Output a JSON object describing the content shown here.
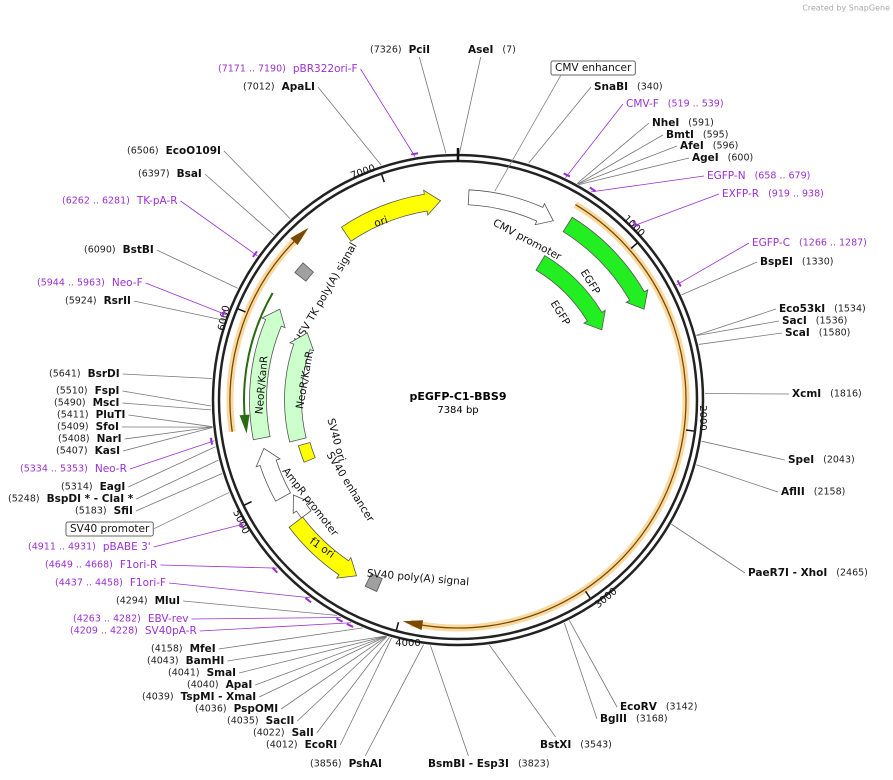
{
  "header": {
    "credit": "Created by SnapGene"
  },
  "map": {
    "name": "pEGFP-C1-BBS9",
    "length": "7384 bp",
    "ticks": [
      "1000",
      "2000",
      "3000",
      "4000",
      "5000",
      "6000",
      "7000"
    ]
  },
  "sites": [
    {
      "name": "PciI",
      "position": "(7326)"
    },
    {
      "name": "AseI",
      "position": "(7)"
    },
    {
      "name": "SnaBI",
      "position": "(340)"
    },
    {
      "name": "NheI",
      "position": "(591)"
    },
    {
      "name": "BmtI",
      "position": "(595)"
    },
    {
      "name": "AfeI",
      "position": "(596)"
    },
    {
      "name": "AgeI",
      "position": "(600)"
    },
    {
      "name": "BspEI",
      "position": "(1330)"
    },
    {
      "name": "Eco53kI",
      "position": "(1534)"
    },
    {
      "name": "SacI",
      "position": "(1536)"
    },
    {
      "name": "ScaI",
      "position": "(1580)"
    },
    {
      "name": "XcmI",
      "position": "(1816)"
    },
    {
      "name": "SpeI",
      "position": "(2043)"
    },
    {
      "name": "AflII",
      "position": "(2158)"
    },
    {
      "name": "PaeR7I  - XhoI",
      "position": "(2465)"
    },
    {
      "name": "EcoRV",
      "position": "(3142)"
    },
    {
      "name": "BglII",
      "position": "(3168)"
    },
    {
      "name": "BstXI",
      "position": "(3543)"
    },
    {
      "name": "BsmBI  - Esp3I",
      "position": "(3823)"
    },
    {
      "name": "PshAI",
      "position": "(3856)"
    },
    {
      "name": "EcoRI",
      "position": "(4012)"
    },
    {
      "name": "SalI",
      "position": "(4022)"
    },
    {
      "name": "SacII",
      "position": "(4035)"
    },
    {
      "name": "PspOMI",
      "position": "(4036)"
    },
    {
      "name": "TspMI  - XmaI",
      "position": "(4039)"
    },
    {
      "name": "ApaI",
      "position": "(4040)"
    },
    {
      "name": "SmaI",
      "position": "(4041)"
    },
    {
      "name": "BamHI",
      "position": "(4043)"
    },
    {
      "name": "MfeI",
      "position": "(4158)"
    },
    {
      "name": "MluI",
      "position": "(4294)"
    },
    {
      "name": "SfiI",
      "position": "(5183)"
    },
    {
      "name": "BspDI *  - ClaI *",
      "position": "(5248)"
    },
    {
      "name": "EagI",
      "position": "(5314)"
    },
    {
      "name": "KasI",
      "position": "(5407)"
    },
    {
      "name": "NarI",
      "position": "(5408)"
    },
    {
      "name": "SfoI",
      "position": "(5409)"
    },
    {
      "name": "PluTI",
      "position": "(5411)"
    },
    {
      "name": "MscI",
      "position": "(5490)"
    },
    {
      "name": "FspI",
      "position": "(5510)"
    },
    {
      "name": "BsrDI",
      "position": "(5641)"
    },
    {
      "name": "RsrII",
      "position": "(5924)"
    },
    {
      "name": "BstBI",
      "position": "(6090)"
    },
    {
      "name": "BsaI",
      "position": "(6397)"
    },
    {
      "name": "EcoO109I",
      "position": "(6506)"
    },
    {
      "name": "ApaLI",
      "position": "(7012)"
    }
  ],
  "primers": [
    {
      "name": "pBR322ori-F",
      "position": "(7171 .. 7190)"
    },
    {
      "name": "CMV-F",
      "position": "(519 .. 539)"
    },
    {
      "name": "EGFP-N",
      "position": "(658 .. 679)"
    },
    {
      "name": "EXFP-R",
      "position": "(919 .. 938)"
    },
    {
      "name": "EGFP-C",
      "position": "(1266 .. 1287)"
    },
    {
      "name": "SV40pA-R",
      "position": "(4209 .. 4228)"
    },
    {
      "name": "EBV-rev",
      "position": "(4263 .. 4282)"
    },
    {
      "name": "F1ori-F",
      "position": "(4437 .. 4458)"
    },
    {
      "name": "F1ori-R",
      "position": "(4649 .. 4668)"
    },
    {
      "name": "pBABE 3'",
      "position": "(4911 .. 4931)"
    },
    {
      "name": "Neo-R",
      "position": "(5334 .. 5353)"
    },
    {
      "name": "Neo-F",
      "position": "(5944 .. 5963)"
    },
    {
      "name": "TK-pA-R",
      "position": "(6262 .. 6281)"
    }
  ],
  "features": [
    {
      "label": "ori"
    },
    {
      "label": "CMV promoter"
    },
    {
      "label": "EGFP"
    },
    {
      "label": "EGFP"
    },
    {
      "label": "HSV TK poly(A) signal"
    },
    {
      "label": "NeoR/KanR"
    },
    {
      "label": "NeoR/KanR"
    },
    {
      "label": "SV40 ori"
    },
    {
      "label": "SV40 enhancer"
    },
    {
      "label": "AmpR promoter"
    },
    {
      "label": "f1 ori"
    },
    {
      "label": "SV40 poly(A) signal"
    }
  ],
  "boxed_labels": [
    "CMV enhancer",
    "SV40 promoter"
  ]
}
